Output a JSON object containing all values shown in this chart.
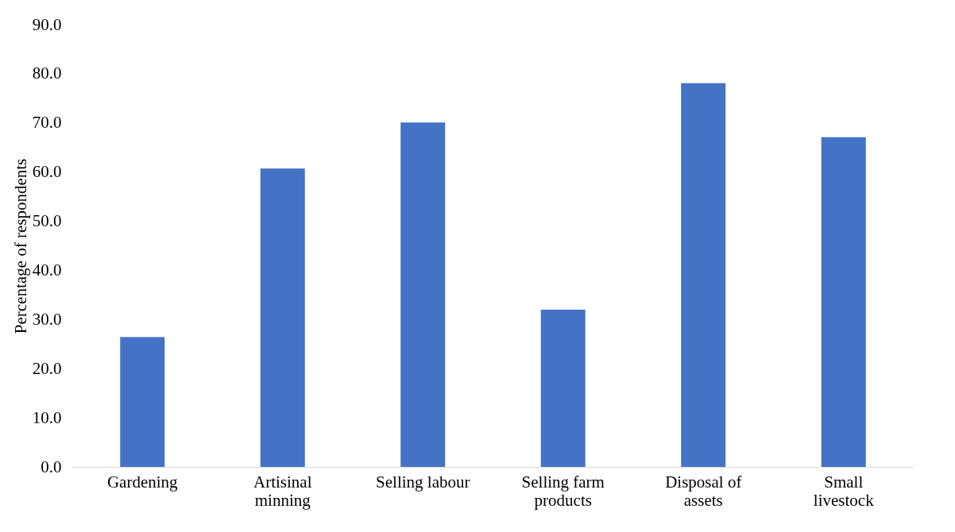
{
  "chart_data": {
    "type": "bar",
    "ylabel": "Percentage of respondents",
    "categories": [
      "Gardening",
      "Artisinal minning",
      "Selling labour",
      "Selling farm products",
      "Disposal of assets",
      "Small livestock"
    ],
    "values": [
      26.4,
      60.7,
      70.1,
      32.0,
      78.1,
      67.1
    ],
    "color": "#4472c4",
    "ylim": [
      0,
      90
    ],
    "yticks": [
      {
        "value": 0,
        "label": "0.0"
      },
      {
        "value": 10,
        "label": "10.0"
      },
      {
        "value": 20,
        "label": "20.0"
      },
      {
        "value": 30,
        "label": "30.0"
      },
      {
        "value": 40,
        "label": "40.0"
      },
      {
        "value": 50,
        "label": "50.0"
      },
      {
        "value": 60,
        "label": "60.0"
      },
      {
        "value": 70,
        "label": "70.0"
      },
      {
        "value": 80,
        "label": "80.0"
      },
      {
        "value": 90,
        "label": "90.0"
      }
    ],
    "grid": false
  }
}
